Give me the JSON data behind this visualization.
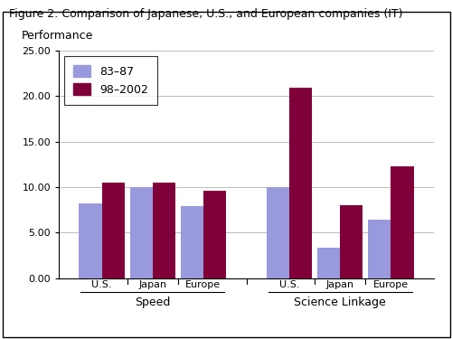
{
  "title": "Figure 2: Comparison of Japanese, U.S., and European companies (IT)",
  "ylabel": "Performance",
  "bar_color_83_87": "#9999dd",
  "bar_color_98_2002": "#80003a",
  "legend_labels": [
    "83–87",
    "98–2002"
  ],
  "groups": [
    {
      "label": "Speed",
      "subcategories": [
        "U.S.",
        "Japan",
        "Europe"
      ],
      "values_83_87": [
        820,
        1000,
        790
      ],
      "values_98_2002": [
        1050,
        1045,
        960
      ]
    },
    {
      "label": "Science Linkage",
      "subcategories": [
        "U.S.",
        "Japan",
        "Europe"
      ],
      "values_83_87": [
        1000,
        330,
        645
      ],
      "values_98_2002": [
        2090,
        800,
        1230
      ]
    }
  ],
  "ylim": [
    0,
    2500
  ],
  "yticks": [
    0,
    500,
    1000,
    1500,
    2000,
    2500
  ],
  "ytick_labels": [
    "0.00",
    "5.00",
    "10.00",
    "15.00",
    "20.00",
    "25.00"
  ],
  "bar_width": 0.35,
  "figure_bg": "#ffffff",
  "axes_bg": "#ffffff",
  "grid_color": "#bbbbbb",
  "title_fontsize": 9,
  "ylabel_fontsize": 9,
  "tick_fontsize": 8,
  "legend_fontsize": 9,
  "group_label_fontsize": 9
}
